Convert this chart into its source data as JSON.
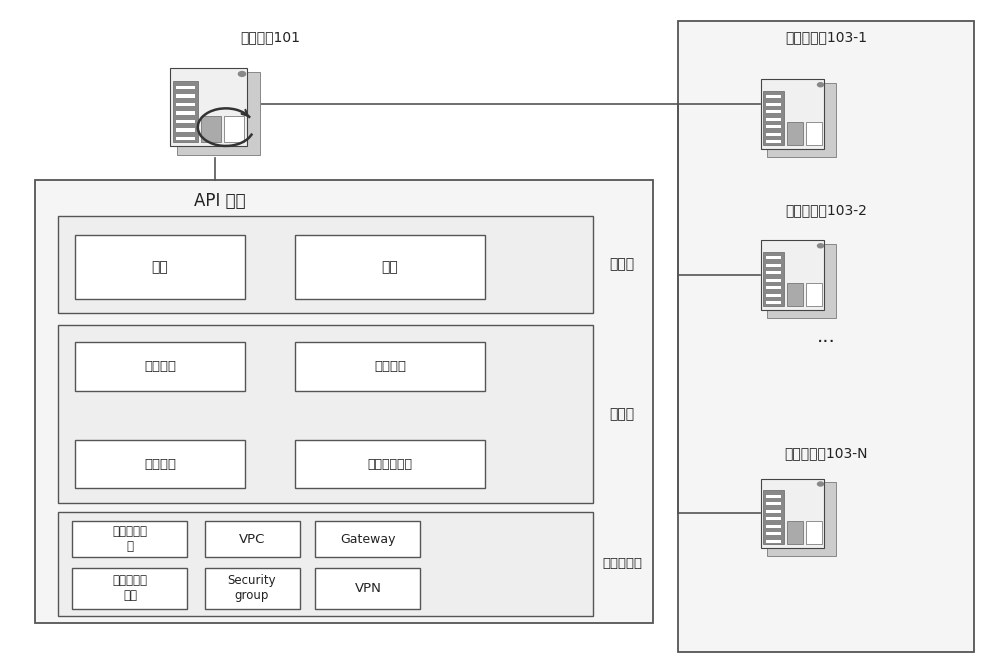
{
  "bg_color": "#ffffff",
  "ec": "#555555",
  "text_color": "#222222",
  "figsize": [
    10.0,
    6.71
  ],
  "dpi": 100,
  "cloud_label": "云服务器101",
  "api_label": "API 接口",
  "app_layer_label": "应用层",
  "service_layer_label": "服务层",
  "infra_layer_label": "基础设施层",
  "code_label": "代码",
  "config_label": "配置",
  "os_label": "操作系统",
  "integrate_label": "整合设置",
  "boot_label": "启动配置",
  "sysservice_label": "系统服务配置",
  "osimg_label": "操作系统镜\n像",
  "vpc_label": "VPC",
  "gateway_label": "Gateway",
  "auto_label": "自动化口占\n配置",
  "secgroup_label": "Security\ngroup",
  "vpn_label": "VPN",
  "server1_label": "应用服务器103-1",
  "server2_label": "应用服务器103-2",
  "serverN_label": "应用服务器103-N",
  "dots_label": "···"
}
